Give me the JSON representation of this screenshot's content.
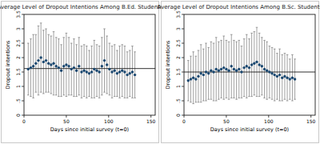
{
  "chart_data": [
    {
      "type": "scatter",
      "title": "Average Level of Dropout Intentions Among B.Ed. Students",
      "x_label": "Days since initial survey (t=0)",
      "y_label": "Dropout intentions",
      "x": [
        5,
        8,
        11,
        14,
        17,
        20,
        23,
        26,
        29,
        32,
        35,
        38,
        41,
        44,
        47,
        50,
        53,
        56,
        59,
        62,
        65,
        68,
        71,
        74,
        77,
        80,
        83,
        86,
        89,
        92,
        95,
        98,
        101,
        104,
        107,
        110,
        113,
        116,
        119,
        122,
        125,
        128,
        131
      ],
      "values": [
        1.6,
        1.65,
        1.7,
        1.8,
        1.9,
        2.0,
        1.85,
        1.9,
        1.8,
        1.75,
        1.8,
        1.7,
        1.65,
        1.55,
        1.7,
        1.75,
        1.7,
        1.6,
        1.65,
        1.55,
        1.7,
        1.5,
        1.55,
        1.5,
        1.45,
        1.5,
        1.6,
        1.55,
        1.5,
        1.7,
        1.9,
        1.75,
        1.6,
        1.5,
        1.55,
        1.45,
        1.5,
        1.55,
        1.5,
        1.4,
        1.45,
        1.5,
        1.4
      ],
      "errors": [
        0.9,
        1.0,
        1.1,
        1.0,
        1.2,
        1.2,
        1.1,
        1.1,
        1.0,
        1.0,
        1.1,
        1.0,
        1.0,
        0.9,
        1.0,
        1.1,
        1.0,
        0.9,
        1.0,
        0.9,
        1.0,
        0.9,
        0.9,
        0.9,
        0.8,
        0.9,
        1.0,
        0.9,
        0.9,
        1.0,
        1.1,
        1.0,
        0.9,
        0.9,
        0.9,
        0.8,
        0.9,
        0.9,
        0.9,
        0.8,
        0.8,
        0.9,
        0.8
      ],
      "reference_line": 1.62,
      "xlim": [
        0,
        155
      ],
      "xticks": [
        0,
        50,
        100,
        150
      ],
      "ylim": [
        0,
        3.5
      ],
      "yticks": [
        0,
        {
          "value": 0.5,
          "label": ".5"
        },
        1,
        1.5,
        2,
        2.5,
        3,
        3.5
      ],
      "color": "#1a476f",
      "marker": "circle"
    },
    {
      "type": "scatter",
      "title": "Average Level of Dropout Intentions Among B.Sc. Students",
      "x_label": "Days since initial survey (t=0)",
      "y_label": "Dropout intentions",
      "x": [
        5,
        8,
        11,
        14,
        17,
        20,
        23,
        26,
        29,
        32,
        35,
        38,
        41,
        44,
        47,
        50,
        53,
        56,
        59,
        62,
        65,
        68,
        71,
        74,
        77,
        80,
        83,
        86,
        89,
        92,
        95,
        98,
        101,
        104,
        107,
        110,
        113,
        116,
        119,
        122,
        125,
        128,
        131
      ],
      "values": [
        1.2,
        1.25,
        1.3,
        1.25,
        1.35,
        1.45,
        1.4,
        1.5,
        1.45,
        1.55,
        1.5,
        1.6,
        1.55,
        1.6,
        1.65,
        1.6,
        1.55,
        1.7,
        1.6,
        1.55,
        1.6,
        1.5,
        1.65,
        1.7,
        1.65,
        1.75,
        1.8,
        1.85,
        1.75,
        1.7,
        1.6,
        1.55,
        1.5,
        1.45,
        1.4,
        1.35,
        1.4,
        1.3,
        1.35,
        1.3,
        1.25,
        1.3,
        1.25
      ],
      "errors": [
        0.7,
        0.8,
        0.9,
        0.8,
        0.9,
        1.0,
        0.9,
        1.0,
        0.9,
        1.0,
        1.0,
        1.1,
        1.0,
        1.0,
        1.1,
        1.0,
        1.0,
        1.1,
        1.0,
        1.0,
        1.0,
        0.9,
        1.0,
        1.1,
        1.0,
        1.1,
        1.1,
        1.2,
        1.1,
        1.0,
        1.0,
        1.0,
        0.9,
        0.9,
        0.9,
        0.8,
        0.9,
        0.8,
        0.8,
        0.8,
        0.7,
        0.8,
        0.7
      ],
      "reference_line": 1.5,
      "xlim": [
        0,
        155
      ],
      "xticks": [
        0,
        50,
        100,
        150
      ],
      "ylim": [
        0,
        3.5
      ],
      "yticks": [
        0,
        {
          "value": 0.5,
          "label": ".5"
        },
        1,
        1.5,
        2,
        2.5,
        3,
        3.5
      ],
      "color": "#1a476f",
      "marker": "circle"
    }
  ]
}
